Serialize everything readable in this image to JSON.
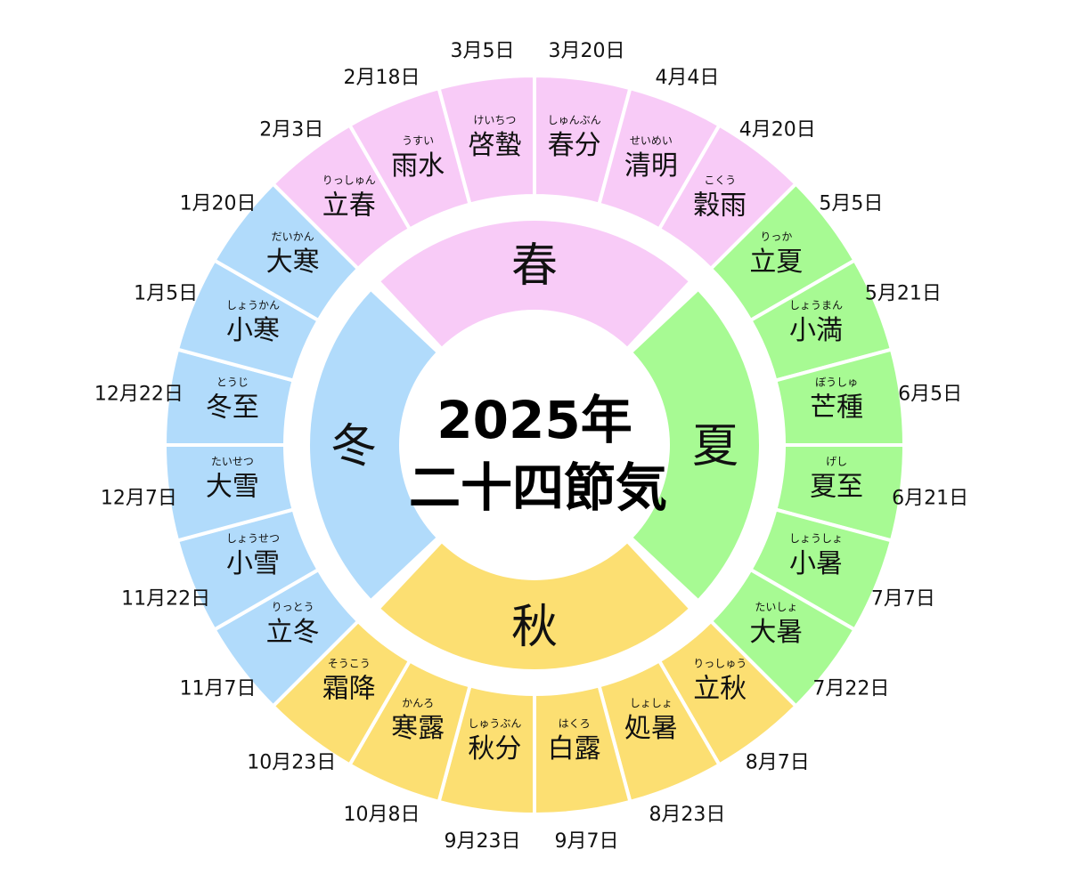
{
  "title": {
    "line1": "2025年",
    "line2": "二十四節気"
  },
  "colors": {
    "spring": "#f8cbf7",
    "summer": "#a7fa93",
    "autumn": "#fcdf72",
    "winter": "#b1dbfb"
  },
  "seasons": [
    {
      "key": "spring",
      "label": "春"
    },
    {
      "key": "summer",
      "label": "夏"
    },
    {
      "key": "autumn",
      "label": "秋"
    },
    {
      "key": "winter",
      "label": "冬"
    }
  ],
  "terms": [
    {
      "name": "春分",
      "reading": "しゅんぶん",
      "date": "3月20日",
      "season": "spring"
    },
    {
      "name": "清明",
      "reading": "せいめい",
      "date": "4月4日",
      "season": "spring"
    },
    {
      "name": "穀雨",
      "reading": "こくう",
      "date": "4月20日",
      "season": "spring"
    },
    {
      "name": "立夏",
      "reading": "りっか",
      "date": "5月5日",
      "season": "summer"
    },
    {
      "name": "小満",
      "reading": "しょうまん",
      "date": "5月21日",
      "season": "summer"
    },
    {
      "name": "芒種",
      "reading": "ぼうしゅ",
      "date": "6月5日",
      "season": "summer"
    },
    {
      "name": "夏至",
      "reading": "げし",
      "date": "6月21日",
      "season": "summer"
    },
    {
      "name": "小暑",
      "reading": "しょうしょ",
      "date": "7月7日",
      "season": "summer"
    },
    {
      "name": "大暑",
      "reading": "たいしょ",
      "date": "7月22日",
      "season": "summer"
    },
    {
      "name": "立秋",
      "reading": "りっしゅう",
      "date": "8月7日",
      "season": "autumn"
    },
    {
      "name": "処暑",
      "reading": "しょしょ",
      "date": "8月23日",
      "season": "autumn"
    },
    {
      "name": "白露",
      "reading": "はくろ",
      "date": "9月7日",
      "season": "autumn"
    },
    {
      "name": "秋分",
      "reading": "しゅうぶん",
      "date": "9月23日",
      "season": "autumn"
    },
    {
      "name": "寒露",
      "reading": "かんろ",
      "date": "10月8日",
      "season": "autumn"
    },
    {
      "name": "霜降",
      "reading": "そうこう",
      "date": "10月23日",
      "season": "autumn"
    },
    {
      "name": "立冬",
      "reading": "りっとう",
      "date": "11月7日",
      "season": "winter"
    },
    {
      "name": "小雪",
      "reading": "しょうせつ",
      "date": "11月22日",
      "season": "winter"
    },
    {
      "name": "大雪",
      "reading": "たいせつ",
      "date": "12月7日",
      "season": "winter"
    },
    {
      "name": "冬至",
      "reading": "とうじ",
      "date": "12月22日",
      "season": "winter"
    },
    {
      "name": "小寒",
      "reading": "しょうかん",
      "date": "1月5日",
      "season": "winter"
    },
    {
      "name": "大寒",
      "reading": "だいかん",
      "date": "1月20日",
      "season": "winter"
    },
    {
      "name": "立春",
      "reading": "りっしゅん",
      "date": "2月3日",
      "season": "spring"
    },
    {
      "name": "雨水",
      "reading": "うすい",
      "date": "2月18日",
      "season": "spring"
    },
    {
      "name": "啓蟄",
      "reading": "けいちつ",
      "date": "3月5日",
      "season": "spring"
    }
  ]
}
